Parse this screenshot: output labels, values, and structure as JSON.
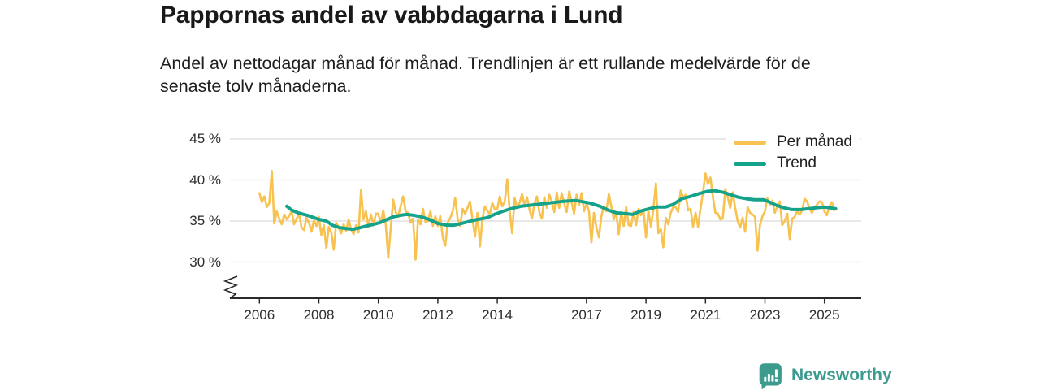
{
  "header": {
    "title": "Pappornas andel av vabbdagarna i Lund",
    "subtitle": "Andel av nettodagar månad för månad. Trendlinjen är ett rullande medelvärde för de senaste tolv månaderna."
  },
  "legend": {
    "items": [
      {
        "label": "Per månad",
        "color": "#f7c24f"
      },
      {
        "label": "Trend",
        "color": "#15a28a"
      }
    ]
  },
  "footer": {
    "brand": "Newsworthy",
    "brand_color": "#3d9b8e",
    "brand_icon": "bar-chart-speech-bubble"
  },
  "chart_data": {
    "type": "line",
    "title": "Pappornas andel av vabbdagarna i Lund",
    "subtitle": "Andel av nettodagar månad för månad. Trendlinjen är ett rullande medelvärde för de senaste tolv månaderna.",
    "unit": "%",
    "grid": "horizontal",
    "legend_position": "top-right",
    "y_axis_break": true,
    "xlim": [
      2005.4,
      2026.2
    ],
    "ylim": [
      29.5,
      45.5
    ],
    "x_ticks": [
      2006,
      2008,
      2010,
      2012,
      2014,
      2017,
      2019,
      2021,
      2023,
      2025
    ],
    "y_ticks": [
      {
        "label": "45 %",
        "value": 45
      },
      {
        "label": "40 %",
        "value": 40
      },
      {
        "label": "35 %",
        "value": 35
      },
      {
        "label": "30 %",
        "value": 30
      }
    ],
    "series": [
      {
        "name": "Per månad",
        "color": "#f7c24f",
        "kind": "monthly",
        "start": "2006-01",
        "values": [
          38.4,
          37.3,
          38.0,
          36.7,
          37.2,
          41.1,
          34.7,
          36.2,
          35.3,
          34.6,
          35.8,
          35.2,
          35.6,
          36.2,
          34.6,
          35.3,
          35.9,
          34.2,
          33.9,
          35.4,
          34.8,
          33.7,
          35.1,
          34.4,
          35.5,
          33.3,
          34.5,
          31.7,
          34.3,
          33.6,
          31.5,
          34.8,
          34.2,
          33.5,
          34.6,
          33.8,
          35.2,
          34.0,
          33.4,
          34.5,
          33.6,
          38.8,
          35.2,
          36.2,
          34.3,
          35.8,
          34.5,
          35.9,
          35.9,
          34.7,
          36.3,
          34.5,
          30.5,
          34.2,
          37.6,
          36.1,
          35.5,
          36.8,
          38.0,
          36.2,
          36.0,
          34.8,
          35.3,
          30.3,
          35.2,
          34.6,
          36.5,
          34.9,
          35.0,
          36.2,
          34.4,
          35.6,
          34.4,
          35.6,
          33.0,
          32.0,
          34.8,
          35.4,
          36.2,
          37.8,
          35.3,
          34.4,
          36.5,
          35.9,
          36.6,
          37.4,
          35.2,
          33.1,
          36.0,
          31.9,
          35.3,
          36.8,
          36.2,
          35.9,
          37.2,
          36.4,
          36.5,
          38.0,
          36.8,
          37.4,
          40.1,
          36.2,
          33.5,
          37.8,
          36.6,
          37.2,
          38.3,
          36.9,
          37.9,
          36.4,
          35.3,
          37.2,
          38.0,
          36.0,
          35.3,
          37.9,
          36.6,
          38.2,
          37.4,
          36.1,
          38.5,
          36.6,
          38.4,
          37.1,
          36.1,
          38.6,
          37.3,
          35.9,
          38.2,
          37.0,
          38.4,
          36.2,
          37.2,
          36.2,
          32.4,
          36.0,
          34.2,
          33.0,
          35.6,
          36.8,
          36.2,
          38.3,
          36.8,
          35.2,
          36.1,
          33.4,
          36.1,
          34.4,
          36.7,
          34.5,
          34.4,
          36.1,
          34.5,
          36.5,
          35.7,
          36.3,
          33.0,
          36.2,
          34.3,
          36.5,
          39.6,
          33.5,
          34.0,
          31.8,
          35.4,
          34.6,
          36.0,
          36.7,
          36.7,
          36.1,
          38.7,
          37.8,
          38.2,
          36.3,
          36.5,
          34.3,
          36.0,
          34.3,
          36.5,
          38.5,
          40.8,
          39.5,
          40.3,
          37.9,
          36.0,
          35.9,
          35.2,
          35.3,
          38.9,
          37.9,
          36.6,
          38.5,
          36.6,
          35.0,
          34.2,
          35.4,
          33.7,
          36.7,
          36.0,
          35.8,
          35.5,
          31.4,
          34.5,
          35.6,
          36.2,
          37.8,
          37.0,
          37.5,
          36.0,
          36.8,
          37.4,
          34.5,
          35.0,
          35.9,
          32.8,
          35.3,
          35.5,
          36.2,
          35.8,
          36.3,
          37.7,
          37.4,
          36.5,
          36.0,
          36.6,
          37.0,
          37.4,
          37.3,
          36.2,
          35.7,
          36.8,
          37.3,
          36.3
        ]
      },
      {
        "name": "Trend",
        "color": "#15a28a",
        "kind": "rolling-12-month-mean",
        "points": [
          [
            2006.92,
            36.8
          ],
          [
            2007.1,
            36.3
          ],
          [
            2007.3,
            36.0
          ],
          [
            2007.6,
            35.7
          ],
          [
            2007.85,
            35.4
          ],
          [
            2008.0,
            35.2
          ],
          [
            2008.25,
            35.0
          ],
          [
            2008.45,
            34.5
          ],
          [
            2008.7,
            34.2
          ],
          [
            2008.9,
            34.1
          ],
          [
            2009.15,
            34.0
          ],
          [
            2009.4,
            34.2
          ],
          [
            2009.6,
            34.4
          ],
          [
            2009.85,
            34.6
          ],
          [
            2010.05,
            34.8
          ],
          [
            2010.3,
            35.2
          ],
          [
            2010.5,
            35.5
          ],
          [
            2010.75,
            35.7
          ],
          [
            2010.95,
            35.8
          ],
          [
            2011.2,
            35.7
          ],
          [
            2011.45,
            35.5
          ],
          [
            2011.7,
            35.2
          ],
          [
            2012.0,
            34.7
          ],
          [
            2012.3,
            34.5
          ],
          [
            2012.55,
            34.5
          ],
          [
            2012.8,
            34.7
          ],
          [
            2013.1,
            35.0
          ],
          [
            2013.35,
            35.2
          ],
          [
            2013.65,
            35.4
          ],
          [
            2013.9,
            35.8
          ],
          [
            2014.2,
            36.2
          ],
          [
            2014.45,
            36.5
          ],
          [
            2014.8,
            36.8
          ],
          [
            2015.3,
            37.0
          ],
          [
            2015.75,
            37.2
          ],
          [
            2016.2,
            37.4
          ],
          [
            2016.65,
            37.5
          ],
          [
            2017.1,
            37.2
          ],
          [
            2017.45,
            36.8
          ],
          [
            2017.75,
            36.3
          ],
          [
            2018.0,
            36.0
          ],
          [
            2018.3,
            35.9
          ],
          [
            2018.55,
            35.8
          ],
          [
            2018.8,
            36.2
          ],
          [
            2019.1,
            36.5
          ],
          [
            2019.35,
            36.7
          ],
          [
            2019.65,
            36.7
          ],
          [
            2019.9,
            37.0
          ],
          [
            2020.2,
            37.7
          ],
          [
            2020.5,
            38.0
          ],
          [
            2020.75,
            38.3
          ],
          [
            2021.05,
            38.6
          ],
          [
            2021.3,
            38.7
          ],
          [
            2021.6,
            38.5
          ],
          [
            2021.85,
            38.2
          ],
          [
            2022.1,
            37.9
          ],
          [
            2022.4,
            37.7
          ],
          [
            2022.65,
            37.6
          ],
          [
            2022.95,
            37.6
          ],
          [
            2023.1,
            37.4
          ],
          [
            2023.4,
            36.9
          ],
          [
            2023.65,
            36.6
          ],
          [
            2023.9,
            36.4
          ],
          [
            2024.2,
            36.4
          ],
          [
            2024.45,
            36.5
          ],
          [
            2024.7,
            36.6
          ],
          [
            2025.0,
            36.7
          ],
          [
            2025.2,
            36.6
          ],
          [
            2025.38,
            36.5
          ]
        ]
      }
    ]
  }
}
